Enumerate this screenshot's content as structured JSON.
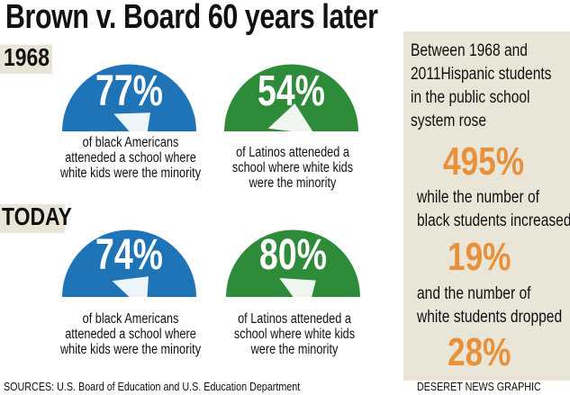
{
  "title": "Brown v. Board 60 years later",
  "colors": {
    "black_gauge": "#1f74b8",
    "latino_gauge": "#2e8b3a",
    "accent": "#e8913a",
    "band": "#e9e6d8"
  },
  "sections": [
    {
      "label": "1968",
      "items": [
        {
          "value": "77%",
          "caption_lines": [
            "of black Americans",
            "atteneded a school where",
            "white kids were the minority"
          ]
        },
        {
          "value": "54%",
          "caption_lines": [
            "of Latinos atteneded a",
            "school where white kids",
            "were the minority"
          ]
        }
      ]
    },
    {
      "label": "TODAY",
      "items": [
        {
          "value": "74%",
          "caption_lines": [
            "of black Americans",
            "atteneded a school where",
            "white kids were the minority"
          ]
        },
        {
          "value": "80%",
          "caption_lines": [
            "of Latinos atteneded a",
            "school where white kids",
            "were the minority"
          ]
        }
      ]
    }
  ],
  "sidebar": {
    "intro_lines": [
      "Between 1968 and",
      "2011Hispanic students",
      "in the public school",
      "system rose"
    ],
    "stat1": "495%",
    "mid1_lines": [
      "while the number of",
      "black students increased"
    ],
    "stat2": "19%",
    "mid2_lines": [
      "and the number of",
      "white students dropped"
    ],
    "stat3": "28%"
  },
  "footer": {
    "sources": "SOURCES: U.S. Board of Education and U.S. Education Department",
    "credit": "DESERET NEWS GRAPHIC"
  },
  "chart_data": {
    "type": "gauge",
    "series": [
      {
        "name": "of black Americans",
        "values": [
          77,
          74
        ]
      },
      {
        "name": "of Latinos",
        "values": [
          54,
          80
        ]
      }
    ],
    "categories": [
      "1968",
      "TODAY"
    ],
    "ylim": [
      0,
      100
    ]
  }
}
